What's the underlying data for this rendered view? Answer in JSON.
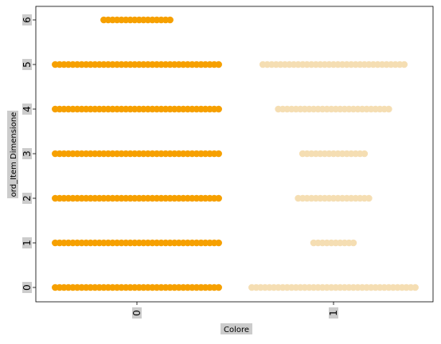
{
  "chart_data": {
    "type": "scatter",
    "xlabel": "Colore",
    "ylabel": "ord_Item Dimensione",
    "x_tick_labels": [
      "0",
      "1"
    ],
    "y_tick_labels": [
      "0",
      "1",
      "2",
      "3",
      "4",
      "5",
      "6"
    ],
    "grid": false,
    "colors": {
      "0": "#f6a000",
      "1": "#f5deb3"
    },
    "series": [
      {
        "values": [
          [
            0,
            0,
            0,
            0,
            0,
            0
          ],
          [
            0,
            1,
            2,
            3,
            4,
            5
          ],
          [
            0,
            0,
            0,
            0,
            0,
            0
          ]
        ]
      }
    ],
    "points": [
      {
        "category": "0",
        "y": 0,
        "count": 38
      },
      {
        "category": "0",
        "y": 1,
        "count": 38
      },
      {
        "category": "0",
        "y": 2,
        "count": 38
      },
      {
        "category": "0",
        "y": 3,
        "count": 38
      },
      {
        "category": "0",
        "y": 4,
        "count": 38
      },
      {
        "category": "0",
        "y": 5,
        "count": 38
      },
      {
        "category": "0",
        "y": 6,
        "count": 16
      },
      {
        "category": "1",
        "y": 0,
        "count": 38
      },
      {
        "category": "1",
        "y": 1,
        "count": 10
      },
      {
        "category": "1",
        "y": 2,
        "count": 17
      },
      {
        "category": "1",
        "y": 3,
        "count": 15
      },
      {
        "category": "1",
        "y": 4,
        "count": 26
      },
      {
        "category": "1",
        "y": 5,
        "count": 33
      }
    ]
  }
}
